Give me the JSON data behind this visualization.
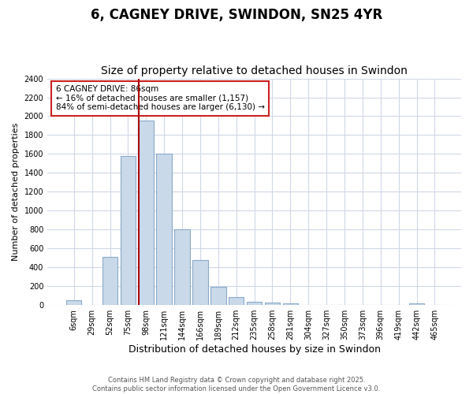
{
  "title": "6, CAGNEY DRIVE, SWINDON, SN25 4YR",
  "subtitle": "Size of property relative to detached houses in Swindon",
  "xlabel": "Distribution of detached houses by size in Swindon",
  "ylabel": "Number of detached properties",
  "bar_labels": [
    "6sqm",
    "29sqm",
    "52sqm",
    "75sqm",
    "98sqm",
    "121sqm",
    "144sqm",
    "166sqm",
    "189sqm",
    "212sqm",
    "235sqm",
    "258sqm",
    "281sqm",
    "304sqm",
    "327sqm",
    "350sqm",
    "373sqm",
    "396sqm",
    "419sqm",
    "442sqm",
    "465sqm"
  ],
  "bar_values": [
    50,
    0,
    510,
    1580,
    1950,
    1600,
    800,
    480,
    195,
    85,
    35,
    25,
    15,
    5,
    5,
    5,
    0,
    0,
    0,
    20,
    0
  ],
  "bar_color": "#c9d9ea",
  "bar_edge_color": "#8aaac8",
  "bg_color": "#ffffff",
  "grid_color": "#d0d8e8",
  "vline_color": "#aa0000",
  "annotation_text": "6 CAGNEY DRIVE: 86sqm\n← 16% of detached houses are smaller (1,157)\n84% of semi-detached houses are larger (6,130) →",
  "annotation_box_facecolor": "#ffffff",
  "annotation_edge_color": "#cc2222",
  "ylim": [
    0,
    2400
  ],
  "yticks": [
    0,
    200,
    400,
    600,
    800,
    1000,
    1200,
    1400,
    1600,
    1800,
    2000,
    2200,
    2400
  ],
  "footer_text": "Contains HM Land Registry data © Crown copyright and database right 2025.\nContains public sector information licensed under the Open Government Licence v3.0.",
  "title_fontsize": 12,
  "subtitle_fontsize": 10,
  "xlabel_fontsize": 9,
  "ylabel_fontsize": 8,
  "tick_fontsize": 7,
  "annotation_fontsize": 7.5,
  "footer_fontsize": 6
}
